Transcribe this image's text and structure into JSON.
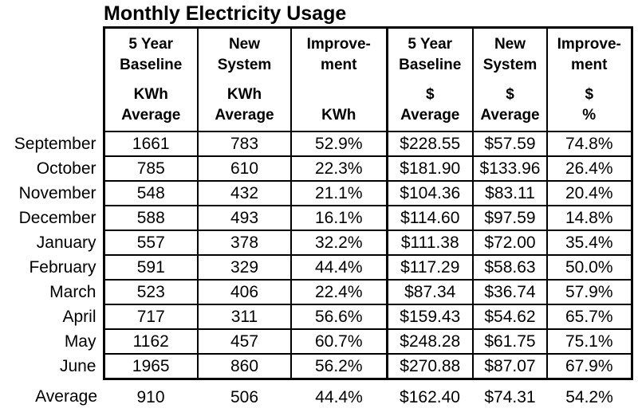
{
  "title": "Monthly Electricity Usage",
  "colors": {
    "text": "#000000",
    "border": "#000000",
    "background": "#ffffff"
  },
  "table": {
    "columns": [
      {
        "line1": "5 Year",
        "line2": "Baseline",
        "line3": "KWh",
        "line4": "Average"
      },
      {
        "line1": "New",
        "line2": "System",
        "line3": "KWh",
        "line4": "Average"
      },
      {
        "line1": "Improve-",
        "line2": "ment",
        "line3": "",
        "line4": "KWh"
      },
      {
        "line1": "5 Year",
        "line2": "Baseline",
        "line3": "$",
        "line4": "Average"
      },
      {
        "line1": "New",
        "line2": "System",
        "line3": "$",
        "line4": "Average"
      },
      {
        "line1": "Improve-",
        "line2": "ment",
        "line3": "$",
        "line4": "%"
      }
    ],
    "rows": [
      {
        "month": "September",
        "cells": [
          "1661",
          "783",
          "52.9%",
          "$228.55",
          "$57.59",
          "74.8%"
        ]
      },
      {
        "month": "October",
        "cells": [
          "785",
          "610",
          "22.3%",
          "$181.90",
          "$133.96",
          "26.4%"
        ]
      },
      {
        "month": "November",
        "cells": [
          "548",
          "432",
          "21.1%",
          "$104.36",
          "$83.11",
          "20.4%"
        ]
      },
      {
        "month": "December",
        "cells": [
          "588",
          "493",
          "16.1%",
          "$114.60",
          "$97.59",
          "14.8%"
        ]
      },
      {
        "month": "January",
        "cells": [
          "557",
          "378",
          "32.2%",
          "$111.38",
          "$72.00",
          "35.4%"
        ]
      },
      {
        "month": "February",
        "cells": [
          "591",
          "329",
          "44.4%",
          "$117.29",
          "$58.63",
          "50.0%"
        ]
      },
      {
        "month": "March",
        "cells": [
          "523",
          "406",
          "22.4%",
          "$87.34",
          "$36.74",
          "57.9%"
        ]
      },
      {
        "month": "April",
        "cells": [
          "717",
          "311",
          "56.6%",
          "$159.43",
          "$54.62",
          "65.7%"
        ]
      },
      {
        "month": "May",
        "cells": [
          "1162",
          "457",
          "60.7%",
          "$248.28",
          "$61.75",
          "75.1%"
        ]
      },
      {
        "month": "June",
        "cells": [
          "1965",
          "860",
          "56.2%",
          "$270.88",
          "$87.07",
          "67.9%"
        ]
      }
    ],
    "average_row": {
      "month": "Average",
      "cells": [
        "910",
        "506",
        "44.4%",
        "$162.40",
        "$74.31",
        "54.2%"
      ]
    }
  },
  "chart_data": {
    "type": "table",
    "title": "Monthly Electricity Usage",
    "categories": [
      "September",
      "October",
      "November",
      "December",
      "January",
      "February",
      "March",
      "April",
      "May",
      "June",
      "Average"
    ],
    "series": [
      {
        "name": "5 Year Baseline KWh Average",
        "values": [
          1661,
          785,
          548,
          588,
          557,
          591,
          523,
          717,
          1162,
          1965,
          910
        ]
      },
      {
        "name": "New System KWh Average",
        "values": [
          783,
          610,
          432,
          493,
          378,
          329,
          406,
          311,
          457,
          860,
          506
        ]
      },
      {
        "name": "Improvement KWh %",
        "values": [
          52.9,
          22.3,
          21.1,
          16.1,
          32.2,
          44.4,
          22.4,
          56.6,
          60.7,
          56.2,
          44.4
        ]
      },
      {
        "name": "5 Year Baseline $ Average",
        "values": [
          228.55,
          181.9,
          104.36,
          114.6,
          111.38,
          117.29,
          87.34,
          159.43,
          248.28,
          270.88,
          162.4
        ]
      },
      {
        "name": "New System $ Average",
        "values": [
          57.59,
          133.96,
          83.11,
          97.59,
          72.0,
          58.63,
          36.74,
          54.62,
          61.75,
          87.07,
          74.31
        ]
      },
      {
        "name": "Improvement $ %",
        "values": [
          74.8,
          26.4,
          20.4,
          14.8,
          35.4,
          50.0,
          57.9,
          65.7,
          75.1,
          67.9,
          54.2
        ]
      }
    ],
    "layout": {
      "grid": true,
      "header_groups": [
        "KWh columns",
        "$ columns"
      ]
    }
  }
}
